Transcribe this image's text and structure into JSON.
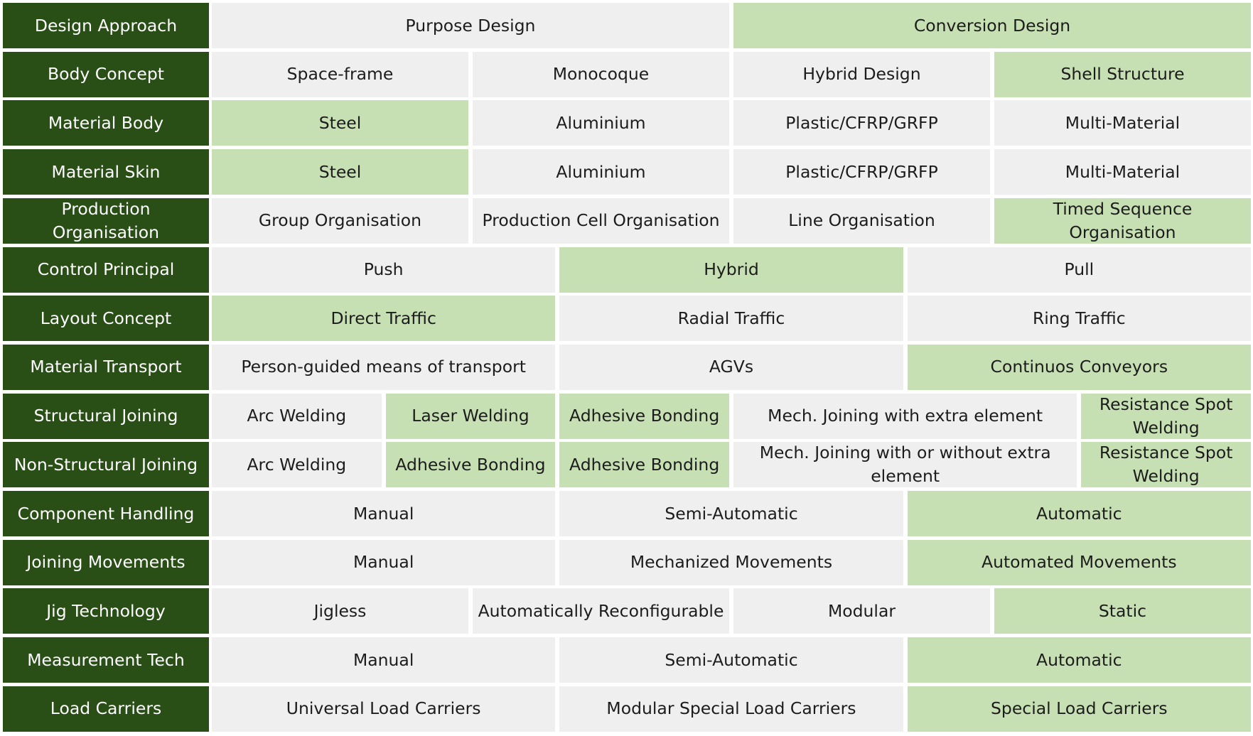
{
  "colors": {
    "header_background": "#294f17",
    "header_text": "#ffffff",
    "option_background": "#efefef",
    "selected_option_background": "#c6e0b4",
    "text": "#1c1c1c"
  },
  "rows": [
    {
      "label": "Design Approach",
      "options": [
        {
          "text": "Purpose Design",
          "span": 6,
          "selected": false
        },
        {
          "text": "Conversion Design",
          "span": 6,
          "selected": true
        }
      ]
    },
    {
      "label": "Body Concept",
      "options": [
        {
          "text": "Space-frame",
          "span": 3,
          "selected": false
        },
        {
          "text": "Monocoque",
          "span": 3,
          "selected": false
        },
        {
          "text": "Hybrid Design",
          "span": 3,
          "selected": false
        },
        {
          "text": "Shell Structure",
          "span": 3,
          "selected": true
        }
      ]
    },
    {
      "label": "Material Body",
      "options": [
        {
          "text": "Steel",
          "span": 3,
          "selected": true
        },
        {
          "text": "Aluminium",
          "span": 3,
          "selected": false
        },
        {
          "text": "Plastic/CFRP/GRFP",
          "span": 3,
          "selected": false
        },
        {
          "text": "Multi-Material",
          "span": 3,
          "selected": false
        }
      ]
    },
    {
      "label": "Material Skin",
      "options": [
        {
          "text": "Steel",
          "span": 3,
          "selected": true
        },
        {
          "text": "Aluminium",
          "span": 3,
          "selected": false
        },
        {
          "text": "Plastic/CFRP/GRFP",
          "span": 3,
          "selected": false
        },
        {
          "text": "Multi-Material",
          "span": 3,
          "selected": false
        }
      ]
    },
    {
      "label": "Production Organisation",
      "options": [
        {
          "text": "Group Organisation",
          "span": 3,
          "selected": false
        },
        {
          "text": "Production Cell Organisation",
          "span": 3,
          "selected": false
        },
        {
          "text": "Line Organisation",
          "span": 3,
          "selected": false
        },
        {
          "text": "Timed Sequence Organisation",
          "span": 3,
          "selected": true
        }
      ]
    },
    {
      "label": "Control Principal",
      "options": [
        {
          "text": "Push",
          "span": 4,
          "selected": false
        },
        {
          "text": "Hybrid",
          "span": 4,
          "selected": true
        },
        {
          "text": "Pull",
          "span": 4,
          "selected": false
        }
      ]
    },
    {
      "label": "Layout Concept",
      "options": [
        {
          "text": "Direct Traffic",
          "span": 4,
          "selected": true
        },
        {
          "text": "Radial Traffic",
          "span": 4,
          "selected": false
        },
        {
          "text": "Ring Traffic",
          "span": 4,
          "selected": false
        }
      ]
    },
    {
      "label": "Material Transport",
      "options": [
        {
          "text": "Person-guided means of transport",
          "span": 4,
          "selected": false
        },
        {
          "text": "AGVs",
          "span": 4,
          "selected": false
        },
        {
          "text": "Continuos Conveyors",
          "span": 4,
          "selected": true
        }
      ]
    },
    {
      "label": "Structural Joining",
      "options": [
        {
          "text": "Arc Welding",
          "span": 2,
          "selected": false
        },
        {
          "text": "Laser Welding",
          "span": 2,
          "selected": true
        },
        {
          "text": "Adhesive Bonding",
          "span": 2,
          "selected": true
        },
        {
          "text": "Mech. Joining with extra element",
          "span": 4,
          "selected": false
        },
        {
          "text": "Resistance Spot Welding",
          "span": 2,
          "selected": true
        }
      ]
    },
    {
      "label": "Non-Structural Joining",
      "options": [
        {
          "text": "Arc Welding",
          "span": 2,
          "selected": false
        },
        {
          "text": "Adhesive Bonding",
          "span": 2,
          "selected": true
        },
        {
          "text": "Adhesive Bonding",
          "span": 2,
          "selected": true
        },
        {
          "text": "Mech. Joining with or without extra element",
          "span": 4,
          "selected": false
        },
        {
          "text": "Resistance Spot Welding",
          "span": 2,
          "selected": true
        }
      ]
    },
    {
      "label": "Component Handling",
      "options": [
        {
          "text": "Manual",
          "span": 4,
          "selected": false
        },
        {
          "text": "Semi-Automatic",
          "span": 4,
          "selected": false
        },
        {
          "text": "Automatic",
          "span": 4,
          "selected": true
        }
      ]
    },
    {
      "label": "Joining Movements",
      "options": [
        {
          "text": "Manual",
          "span": 4,
          "selected": false
        },
        {
          "text": "Mechanized Movements",
          "span": 4,
          "selected": false
        },
        {
          "text": "Automated Movements",
          "span": 4,
          "selected": true
        }
      ]
    },
    {
      "label": "Jig Technology",
      "options": [
        {
          "text": "Jigless",
          "span": 3,
          "selected": false
        },
        {
          "text": "Automatically Reconfigurable",
          "span": 3,
          "selected": false
        },
        {
          "text": "Modular",
          "span": 3,
          "selected": false
        },
        {
          "text": "Static",
          "span": 3,
          "selected": true
        }
      ]
    },
    {
      "label": "Measurement Tech",
      "options": [
        {
          "text": "Manual",
          "span": 4,
          "selected": false
        },
        {
          "text": "Semi-Automatic",
          "span": 4,
          "selected": false
        },
        {
          "text": "Automatic",
          "span": 4,
          "selected": true
        }
      ]
    },
    {
      "label": "Load Carriers",
      "options": [
        {
          "text": "Universal Load Carriers",
          "span": 4,
          "selected": false
        },
        {
          "text": "Modular Special Load Carriers",
          "span": 4,
          "selected": false
        },
        {
          "text": "Special Load Carriers",
          "span": 4,
          "selected": true
        }
      ]
    }
  ]
}
